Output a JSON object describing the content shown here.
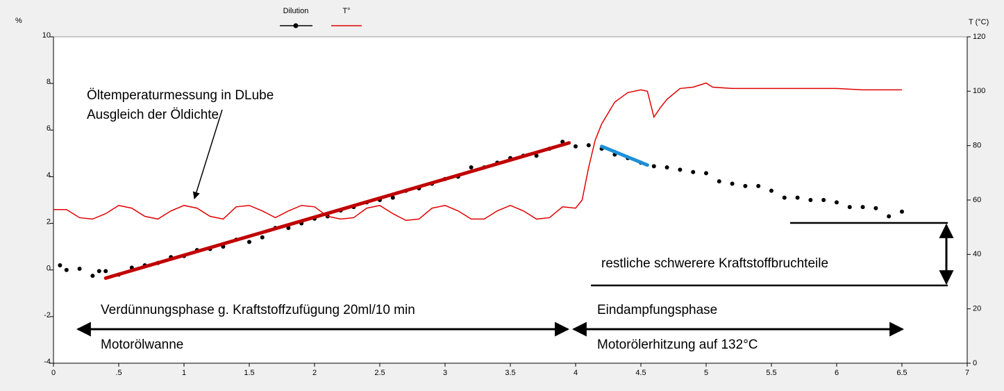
{
  "chart_data": {
    "type": "line",
    "y_label": "%",
    "y2_label": "T (°C)",
    "xlim": [
      0,
      7
    ],
    "xticks": [
      0,
      {
        "value": 0.5,
        "label": ".5"
      },
      1,
      1.5,
      2,
      2.5,
      3,
      3.5,
      4,
      4.5,
      5,
      5.5,
      6,
      6.5,
      7
    ],
    "ylim": [
      -4,
      10
    ],
    "yticks": [
      -4,
      -2,
      0,
      2,
      4,
      6,
      8,
      10
    ],
    "y2lim": [
      0,
      120
    ],
    "y2ticks": [
      0,
      20,
      40,
      60,
      80,
      100,
      120
    ],
    "series": [
      {
        "name": "Dilution",
        "color": "#000000",
        "marker": "dot",
        "x": [
          0.05,
          0.1,
          0.2,
          0.3,
          0.35,
          0.4,
          0.5,
          0.6,
          0.7,
          0.8,
          0.9,
          1.0,
          1.1,
          1.2,
          1.3,
          1.4,
          1.5,
          1.6,
          1.7,
          1.8,
          1.9,
          2.0,
          2.1,
          2.2,
          2.3,
          2.4,
          2.5,
          2.6,
          2.7,
          2.8,
          2.9,
          3.0,
          3.1,
          3.2,
          3.3,
          3.4,
          3.5,
          3.6,
          3.7,
          3.8,
          3.9,
          4.0,
          4.1,
          4.2,
          4.3,
          4.4,
          4.5,
          4.6,
          4.7,
          4.8,
          4.9,
          5.0,
          5.1,
          5.2,
          5.3,
          5.4,
          5.5,
          5.6,
          5.7,
          5.8,
          5.9,
          6.0,
          6.1,
          6.2,
          6.3,
          6.4,
          6.5
        ],
        "values": [
          0.2,
          0.0,
          0.05,
          -0.25,
          -0.05,
          -0.05,
          -0.2,
          0.1,
          0.2,
          0.3,
          0.55,
          0.6,
          0.85,
          0.9,
          1.0,
          1.3,
          1.2,
          1.4,
          1.8,
          1.8,
          2.0,
          2.2,
          2.3,
          2.55,
          2.7,
          2.9,
          3.0,
          3.1,
          3.4,
          3.5,
          3.7,
          3.9,
          4.0,
          4.4,
          4.4,
          4.6,
          4.8,
          4.9,
          4.9,
          5.2,
          5.5,
          5.3,
          5.35,
          5.2,
          4.95,
          4.8,
          4.6,
          4.45,
          4.4,
          4.3,
          4.2,
          4.15,
          3.8,
          3.7,
          3.6,
          3.6,
          3.4,
          3.1,
          3.1,
          3.0,
          3.0,
          2.9,
          2.7,
          2.7,
          2.65,
          2.3,
          2.5
        ]
      },
      {
        "name": "T°",
        "color": "#e00000",
        "axis": "y2",
        "marker": "none",
        "x": [
          0,
          0.1,
          0.2,
          0.3,
          0.4,
          0.5,
          0.6,
          0.7,
          0.8,
          0.9,
          1.0,
          1.1,
          1.2,
          1.3,
          1.4,
          1.5,
          1.6,
          1.7,
          1.8,
          1.9,
          2.0,
          2.1,
          2.2,
          2.3,
          2.4,
          2.5,
          2.6,
          2.7,
          2.8,
          2.9,
          3.0,
          3.1,
          3.2,
          3.3,
          3.4,
          3.5,
          3.6,
          3.7,
          3.8,
          3.9,
          4.0,
          4.05,
          4.1,
          4.15,
          4.2,
          4.3,
          4.4,
          4.5,
          4.55,
          4.6,
          4.65,
          4.7,
          4.8,
          4.9,
          5.0,
          5.05,
          5.2,
          5.5,
          5.8,
          6.0,
          6.2,
          6.4,
          6.5
        ],
        "values": [
          56.5,
          56.5,
          53.5,
          53,
          55,
          58,
          57,
          54,
          53,
          56,
          58,
          57,
          54,
          53,
          57.5,
          58,
          56,
          53.5,
          56,
          58,
          57.5,
          54,
          53,
          53.5,
          57,
          58,
          55,
          52.5,
          53,
          57,
          58,
          56,
          53,
          53,
          56,
          58,
          56,
          53,
          53.5,
          57.5,
          57,
          60,
          72,
          82,
          88,
          96,
          99.5,
          100.5,
          100,
          90.5,
          94,
          97,
          101,
          101.5,
          103,
          101.5,
          101,
          101,
          101,
          101,
          100.5,
          100.5,
          100.5
        ]
      }
    ],
    "fit_lines": [
      {
        "color": "#c00000",
        "x": [
          0.4,
          3.95
        ],
        "values": [
          -0.35,
          5.45
        ]
      },
      {
        "color": "#1e90d8",
        "x": [
          4.2,
          4.55
        ],
        "values": [
          5.3,
          4.5
        ]
      }
    ],
    "annotations": [
      "Öltemperaturmessung in DLube",
      "Ausgleich der Öldichte",
      "Verdünnungsphase g. Kraftstoffzufügung 20ml/10 min",
      "Motorölwanne",
      "Eindampfungsphase",
      "Motorölerhitzung auf 132°C",
      "restliche schwerere Kraftstoffbruchteile"
    ],
    "legend": "top"
  }
}
